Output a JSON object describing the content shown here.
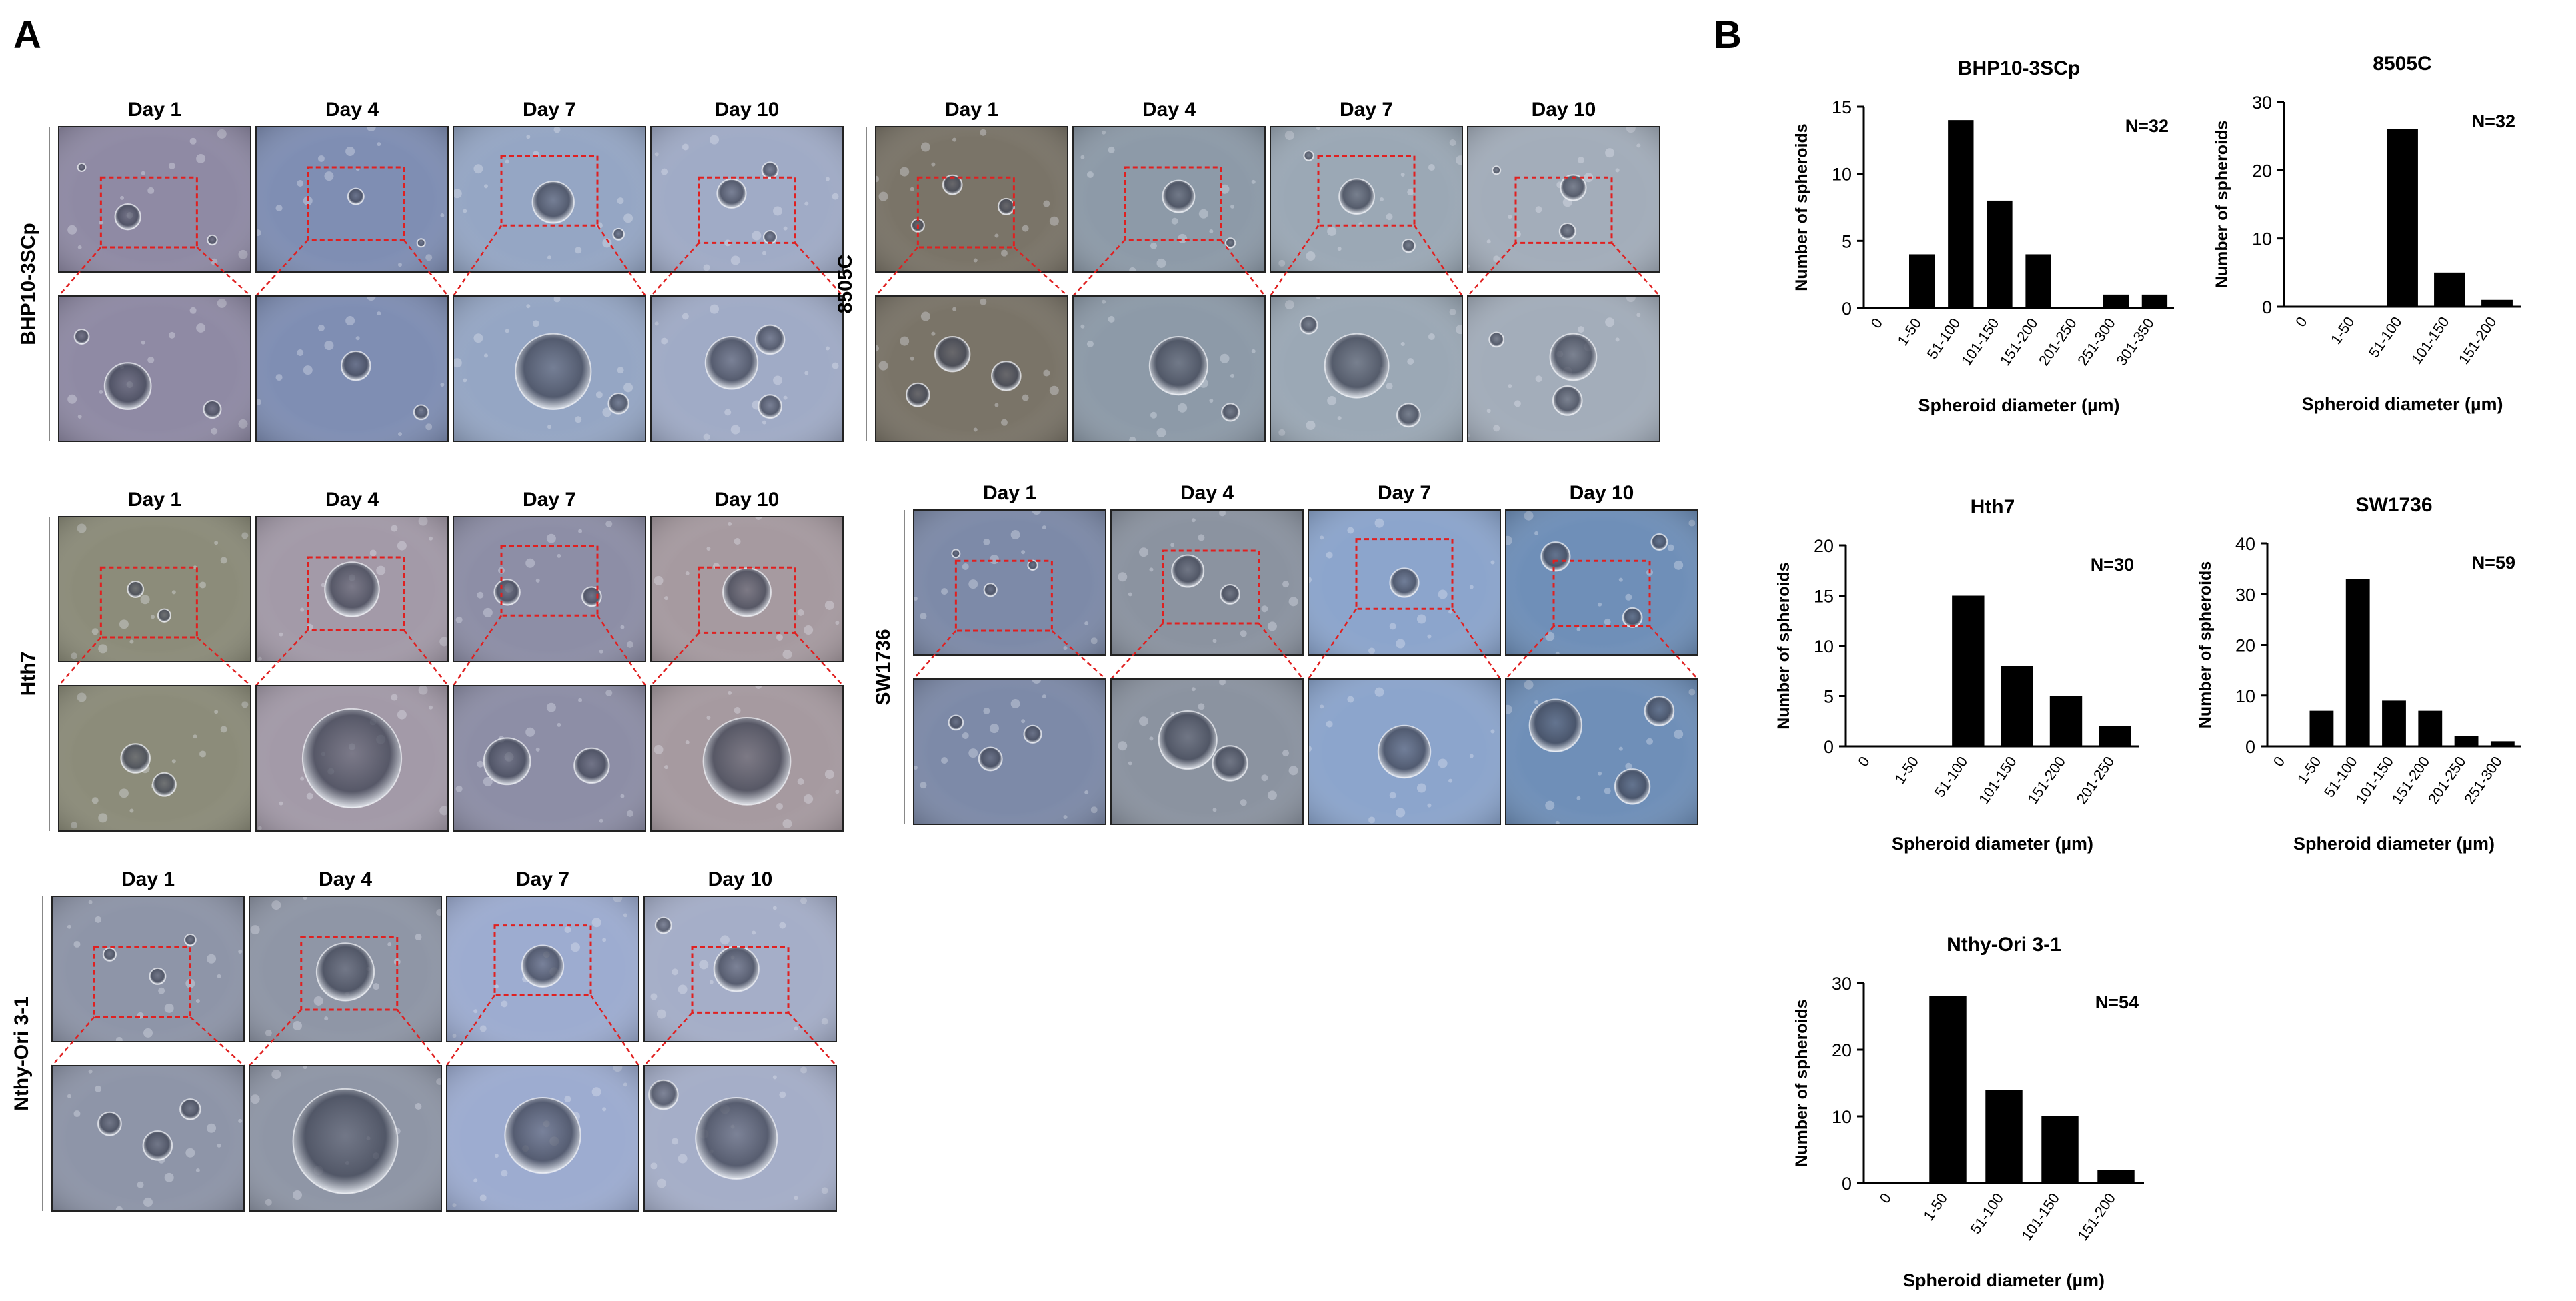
{
  "figure": {
    "panel_a_label": "A",
    "panel_b_label": "B"
  },
  "colors": {
    "dashed_box": "#e02020",
    "bar_fill": "#000000",
    "axis": "#000000"
  },
  "micrographs": {
    "day_labels": [
      "Day 1",
      "Day 4",
      "Day 7",
      "Day 10"
    ],
    "cell_lines": [
      {
        "name": "BHP10-3SCp",
        "tint": [
          "#8f8aa4",
          "#7f8eb3",
          "#95a6c4",
          "#a0abc6"
        ],
        "spheroids": [
          [
            [
              0.36,
              0.62,
              0.16
            ],
            [
              0.8,
              0.78,
              0.06
            ],
            [
              0.12,
              0.28,
              0.05
            ]
          ],
          [
            [
              0.52,
              0.48,
              0.1
            ],
            [
              0.86,
              0.8,
              0.05
            ]
          ],
          [
            [
              0.52,
              0.52,
              0.26
            ],
            [
              0.86,
              0.74,
              0.07
            ]
          ],
          [
            [
              0.42,
              0.46,
              0.18
            ],
            [
              0.62,
              0.3,
              0.1
            ],
            [
              0.62,
              0.76,
              0.08
            ]
          ]
        ]
      },
      {
        "name": "8505C",
        "tint": [
          "#7a7468",
          "#8d9aa8",
          "#9ba8b5",
          "#a3adba"
        ],
        "spheroids": [
          [
            [
              0.4,
              0.4,
              0.12
            ],
            [
              0.68,
              0.55,
              0.1
            ],
            [
              0.22,
              0.68,
              0.08
            ]
          ],
          [
            [
              0.55,
              0.48,
              0.2
            ],
            [
              0.82,
              0.8,
              0.06
            ]
          ],
          [
            [
              0.45,
              0.48,
              0.22
            ],
            [
              0.72,
              0.82,
              0.08
            ],
            [
              0.2,
              0.2,
              0.06
            ]
          ],
          [
            [
              0.55,
              0.42,
              0.16
            ],
            [
              0.52,
              0.72,
              0.1
            ],
            [
              0.15,
              0.3,
              0.05
            ]
          ]
        ]
      },
      {
        "name": "Hth7",
        "tint": [
          "#8c8c7a",
          "#a39aa8",
          "#8d8ea6",
          "#a69aa0"
        ],
        "spheroids": [
          [
            [
              0.4,
              0.5,
              0.1
            ],
            [
              0.55,
              0.68,
              0.08
            ]
          ],
          [
            [
              0.5,
              0.5,
              0.34
            ]
          ],
          [
            [
              0.28,
              0.52,
              0.16
            ],
            [
              0.72,
              0.55,
              0.12
            ]
          ],
          [
            [
              0.5,
              0.52,
              0.3
            ]
          ]
        ]
      },
      {
        "name": "SW1736",
        "tint": [
          "#7d8aa8",
          "#8b93a0",
          "#8ca5cc",
          "#6f8fb8"
        ],
        "spheroids": [
          [
            [
              0.4,
              0.55,
              0.08
            ],
            [
              0.62,
              0.38,
              0.06
            ],
            [
              0.22,
              0.3,
              0.05
            ]
          ],
          [
            [
              0.4,
              0.42,
              0.2
            ],
            [
              0.62,
              0.58,
              0.12
            ]
          ],
          [
            [
              0.5,
              0.5,
              0.18
            ]
          ],
          [
            [
              0.26,
              0.32,
              0.18
            ],
            [
              0.66,
              0.74,
              0.12
            ],
            [
              0.8,
              0.22,
              0.1
            ]
          ]
        ]
      },
      {
        "name": "Nthy-Ori 3-1",
        "tint": [
          "#8e95a8",
          "#8f96a6",
          "#9dacd0",
          "#a5aec8"
        ],
        "spheroids": [
          [
            [
              0.3,
              0.4,
              0.08
            ],
            [
              0.55,
              0.55,
              0.1
            ],
            [
              0.72,
              0.3,
              0.07
            ]
          ],
          [
            [
              0.5,
              0.52,
              0.36
            ]
          ],
          [
            [
              0.5,
              0.48,
              0.26
            ]
          ],
          [
            [
              0.48,
              0.5,
              0.28
            ],
            [
              0.1,
              0.2,
              0.1
            ]
          ]
        ]
      }
    ]
  },
  "chart_data": [
    {
      "type": "bar",
      "title": "BHP10-3SCp",
      "categories": [
        "0",
        "1-50",
        "51-100",
        "101-150",
        "151-200",
        "201-250",
        "251-300",
        "301-350"
      ],
      "values": [
        0,
        4,
        14,
        8,
        4,
        0,
        1,
        1
      ],
      "ylim": [
        0,
        15
      ],
      "yticks": [
        "0",
        "5",
        "10",
        "15"
      ],
      "annotation": "N=32",
      "xlabel": "Spheroid diameter  (µm)",
      "ylabel": "Number of spheroids"
    },
    {
      "type": "bar",
      "title": "8505C",
      "categories": [
        "0",
        "1-50",
        "51-100",
        "101-150",
        "151-200"
      ],
      "values": [
        0,
        0,
        26,
        5,
        1
      ],
      "ylim": [
        0,
        30
      ],
      "yticks": [
        "0",
        "10",
        "20",
        "30"
      ],
      "annotation": "N=32",
      "xlabel": "Spheroid diameter  (µm)",
      "ylabel": "Number of spheroids"
    },
    {
      "type": "bar",
      "title": "Hth7",
      "categories": [
        "0",
        "1-50",
        "51-100",
        "101-150",
        "151-200",
        "201-250"
      ],
      "values": [
        0,
        0,
        15,
        8,
        5,
        2
      ],
      "ylim": [
        0,
        20
      ],
      "yticks": [
        "0",
        "5",
        "10",
        "15",
        "20"
      ],
      "annotation": "N=30",
      "xlabel": "Spheroid diameter  (µm)",
      "ylabel": "Number of spheroids"
    },
    {
      "type": "bar",
      "title": "SW1736",
      "categories": [
        "0",
        "1-50",
        "51-100",
        "101-150",
        "151-200",
        "201-250",
        "251-300"
      ],
      "values": [
        0,
        7,
        33,
        9,
        7,
        2,
        1
      ],
      "ylim": [
        0,
        40
      ],
      "yticks": [
        "0",
        "10",
        "20",
        "30",
        "40"
      ],
      "annotation": "N=59",
      "xlabel": "Spheroid diameter  (µm)",
      "ylabel": "Number of spheroids"
    },
    {
      "type": "bar",
      "title": "Nthy-Ori 3-1",
      "categories": [
        "0",
        "1-50",
        "51-100",
        "101-150",
        "151-200"
      ],
      "values": [
        0,
        28,
        14,
        10,
        2
      ],
      "ylim": [
        0,
        30
      ],
      "yticks": [
        "0",
        "10",
        "20",
        "30"
      ],
      "annotation": "N=54",
      "xlabel": "Spheroid diameter  (µm)",
      "ylabel": "Number of spheroids"
    }
  ]
}
